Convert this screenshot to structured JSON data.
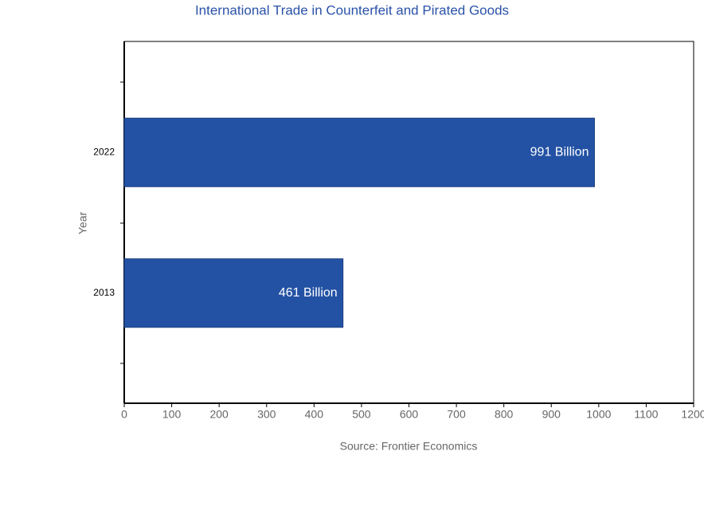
{
  "chart_data": {
    "type": "hbar",
    "title": "International Trade in Counterfeit and Pirated Goods",
    "xlabel": "Source: Frontier Economics",
    "ylabel": "Year",
    "categories": [
      "2013",
      "2022"
    ],
    "values": [
      461,
      991
    ],
    "value_labels": [
      "461 Billion",
      "991 Billion"
    ],
    "color": "#2352a4",
    "xlim": [
      0,
      1200
    ],
    "xticks": [
      0,
      100,
      200,
      300,
      400,
      500,
      600,
      700,
      800,
      900,
      1000,
      1100,
      1200
    ]
  }
}
